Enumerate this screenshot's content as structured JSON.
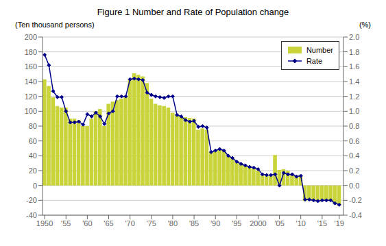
{
  "chart_data": {
    "type": "bar",
    "title": "Figure 1    Number and Rate of Population change",
    "ylabel": "(Ten thousand persons)",
    "y2label": "(%)",
    "x": [
      1950,
      1951,
      1952,
      1953,
      1954,
      1955,
      1956,
      1957,
      1958,
      1959,
      1960,
      1961,
      1962,
      1963,
      1964,
      1965,
      1966,
      1967,
      1968,
      1969,
      1970,
      1971,
      1972,
      1973,
      1974,
      1975,
      1976,
      1977,
      1978,
      1979,
      1980,
      1981,
      1982,
      1983,
      1984,
      1985,
      1986,
      1987,
      1988,
      1989,
      1990,
      1991,
      1992,
      1993,
      1994,
      1995,
      1996,
      1997,
      1998,
      1999,
      2000,
      2001,
      2002,
      2003,
      2004,
      2005,
      2006,
      2007,
      2008,
      2009,
      2010,
      2011,
      2012,
      2013,
      2014,
      2015,
      2016,
      2017,
      2018,
      2019
    ],
    "series": [
      {
        "name": "Number",
        "type": "bar",
        "color": "#c8d43a",
        "values": [
          143,
          134,
          119,
          107,
          105,
          105,
          90,
          90,
          88,
          80,
          80,
          90,
          100,
          103,
          80,
          110,
          113,
          115,
          117,
          120,
          143,
          151,
          149,
          147,
          138,
          117,
          110,
          108,
          107,
          105,
          98,
          95,
          93,
          92,
          91,
          90,
          75,
          77,
          75,
          45,
          47,
          48,
          47,
          40,
          37,
          33,
          30,
          28,
          26,
          23,
          20,
          14,
          13,
          13,
          41,
          21,
          22,
          20,
          15,
          13,
          14,
          -21,
          -20,
          -21,
          -22,
          -21,
          -20,
          -20,
          -25,
          -27
        ]
      },
      {
        "name": "Rate",
        "type": "line",
        "axis": "y2",
        "color": "#00008B",
        "marker": "diamond",
        "values": [
          1.76,
          1.62,
          1.27,
          1.19,
          1.19,
          1.0,
          0.85,
          0.85,
          0.86,
          0.82,
          0.96,
          0.93,
          0.98,
          0.93,
          0.83,
          0.97,
          1.0,
          1.2,
          1.2,
          1.2,
          1.43,
          1.44,
          1.43,
          1.42,
          1.25,
          1.22,
          1.2,
          1.19,
          1.18,
          1.2,
          1.2,
          0.95,
          0.93,
          0.88,
          0.86,
          0.87,
          0.79,
          0.8,
          0.78,
          0.45,
          0.47,
          0.49,
          0.47,
          0.4,
          0.37,
          0.32,
          0.29,
          0.27,
          0.25,
          0.24,
          0.22,
          0.15,
          0.14,
          0.14,
          0.15,
          0.0,
          0.17,
          0.15,
          0.15,
          0.12,
          0.13,
          -0.19,
          -0.19,
          -0.2,
          -0.21,
          -0.2,
          -0.2,
          -0.2,
          -0.24,
          -0.26
        ]
      }
    ],
    "xlim": [
      1949.5,
      2020.0
    ],
    "xticks": [
      1950,
      {
        "value": 1955,
        "label": "'55"
      },
      {
        "value": 1960,
        "label": "'60"
      },
      {
        "value": 1965,
        "label": "'65"
      },
      {
        "value": 1970,
        "label": "'70"
      },
      {
        "value": 1975,
        "label": "'75"
      },
      {
        "value": 1980,
        "label": "'80"
      },
      {
        "value": 1985,
        "label": "'85"
      },
      {
        "value": 1990,
        "label": "'90"
      },
      {
        "value": 1995,
        "label": "'95"
      },
      2000,
      {
        "value": 2005,
        "label": "'05"
      },
      {
        "value": 2010,
        "label": "'10"
      },
      {
        "value": 2015,
        "label": "'15"
      },
      {
        "value": 2019,
        "label": "'19"
      }
    ],
    "ylim": [
      -40,
      200
    ],
    "yticks": [
      -40,
      -20,
      0,
      20,
      40,
      60,
      80,
      100,
      120,
      140,
      160,
      180,
      200
    ],
    "y2lim": [
      -0.4,
      2.0
    ],
    "y2ticks": [
      -0.4,
      -0.2,
      {
        "value": 0.0,
        "label": "0.0"
      },
      0.2,
      0.4,
      0.6,
      0.8,
      {
        "value": 1.0,
        "label": "1.0"
      },
      {
        "value": 1.2,
        "label": "1.2"
      },
      1.4,
      1.6,
      1.8,
      {
        "value": 2.0,
        "label": "2.0"
      }
    ],
    "grid": true,
    "legend": "upper right"
  }
}
